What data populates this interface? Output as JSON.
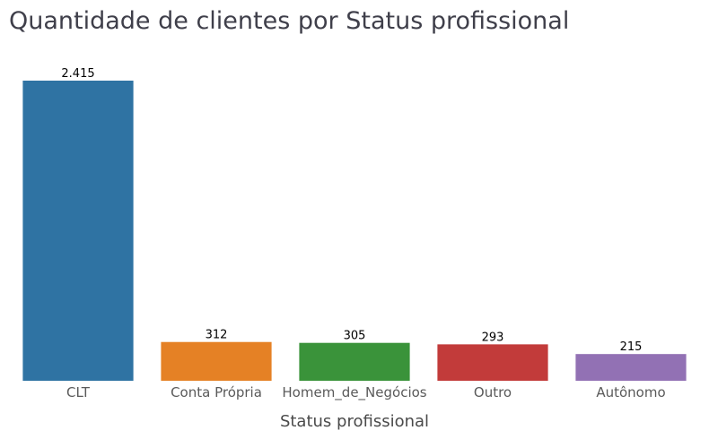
{
  "chart_data": {
    "type": "bar",
    "title": "Quantidade de clientes por Status profissional",
    "xlabel": "Status profissional",
    "ylabel": "",
    "categories": [
      "CLT",
      "Conta Própria",
      "Homem_de_Negócios",
      "Outro",
      "Autônomo"
    ],
    "values": [
      2415,
      312,
      305,
      293,
      215
    ],
    "value_labels": [
      "2.415",
      "312",
      "305",
      "293",
      "215"
    ],
    "colors": [
      "#2f73a3",
      "#e58125",
      "#3a933a",
      "#c23b3a",
      "#9271b4"
    ],
    "ylim": [
      0,
      2415
    ],
    "grid": false,
    "legend": "none"
  }
}
